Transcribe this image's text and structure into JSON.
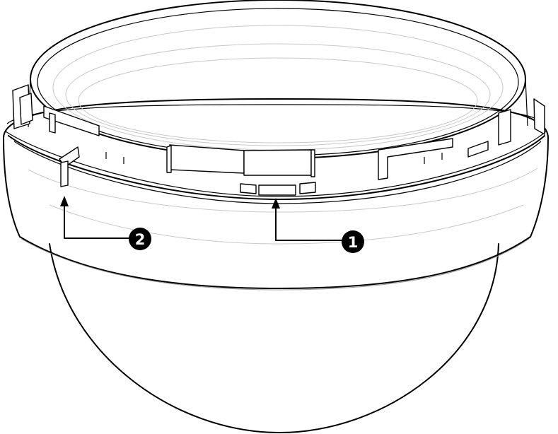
{
  "callouts": [
    {
      "number": "1",
      "color": "#000000",
      "text_color": "#ffffff"
    },
    {
      "number": "2",
      "color": "#000000",
      "text_color": "#ffffff"
    }
  ],
  "colors": {
    "line": "#000000",
    "background": "#ffffff"
  }
}
